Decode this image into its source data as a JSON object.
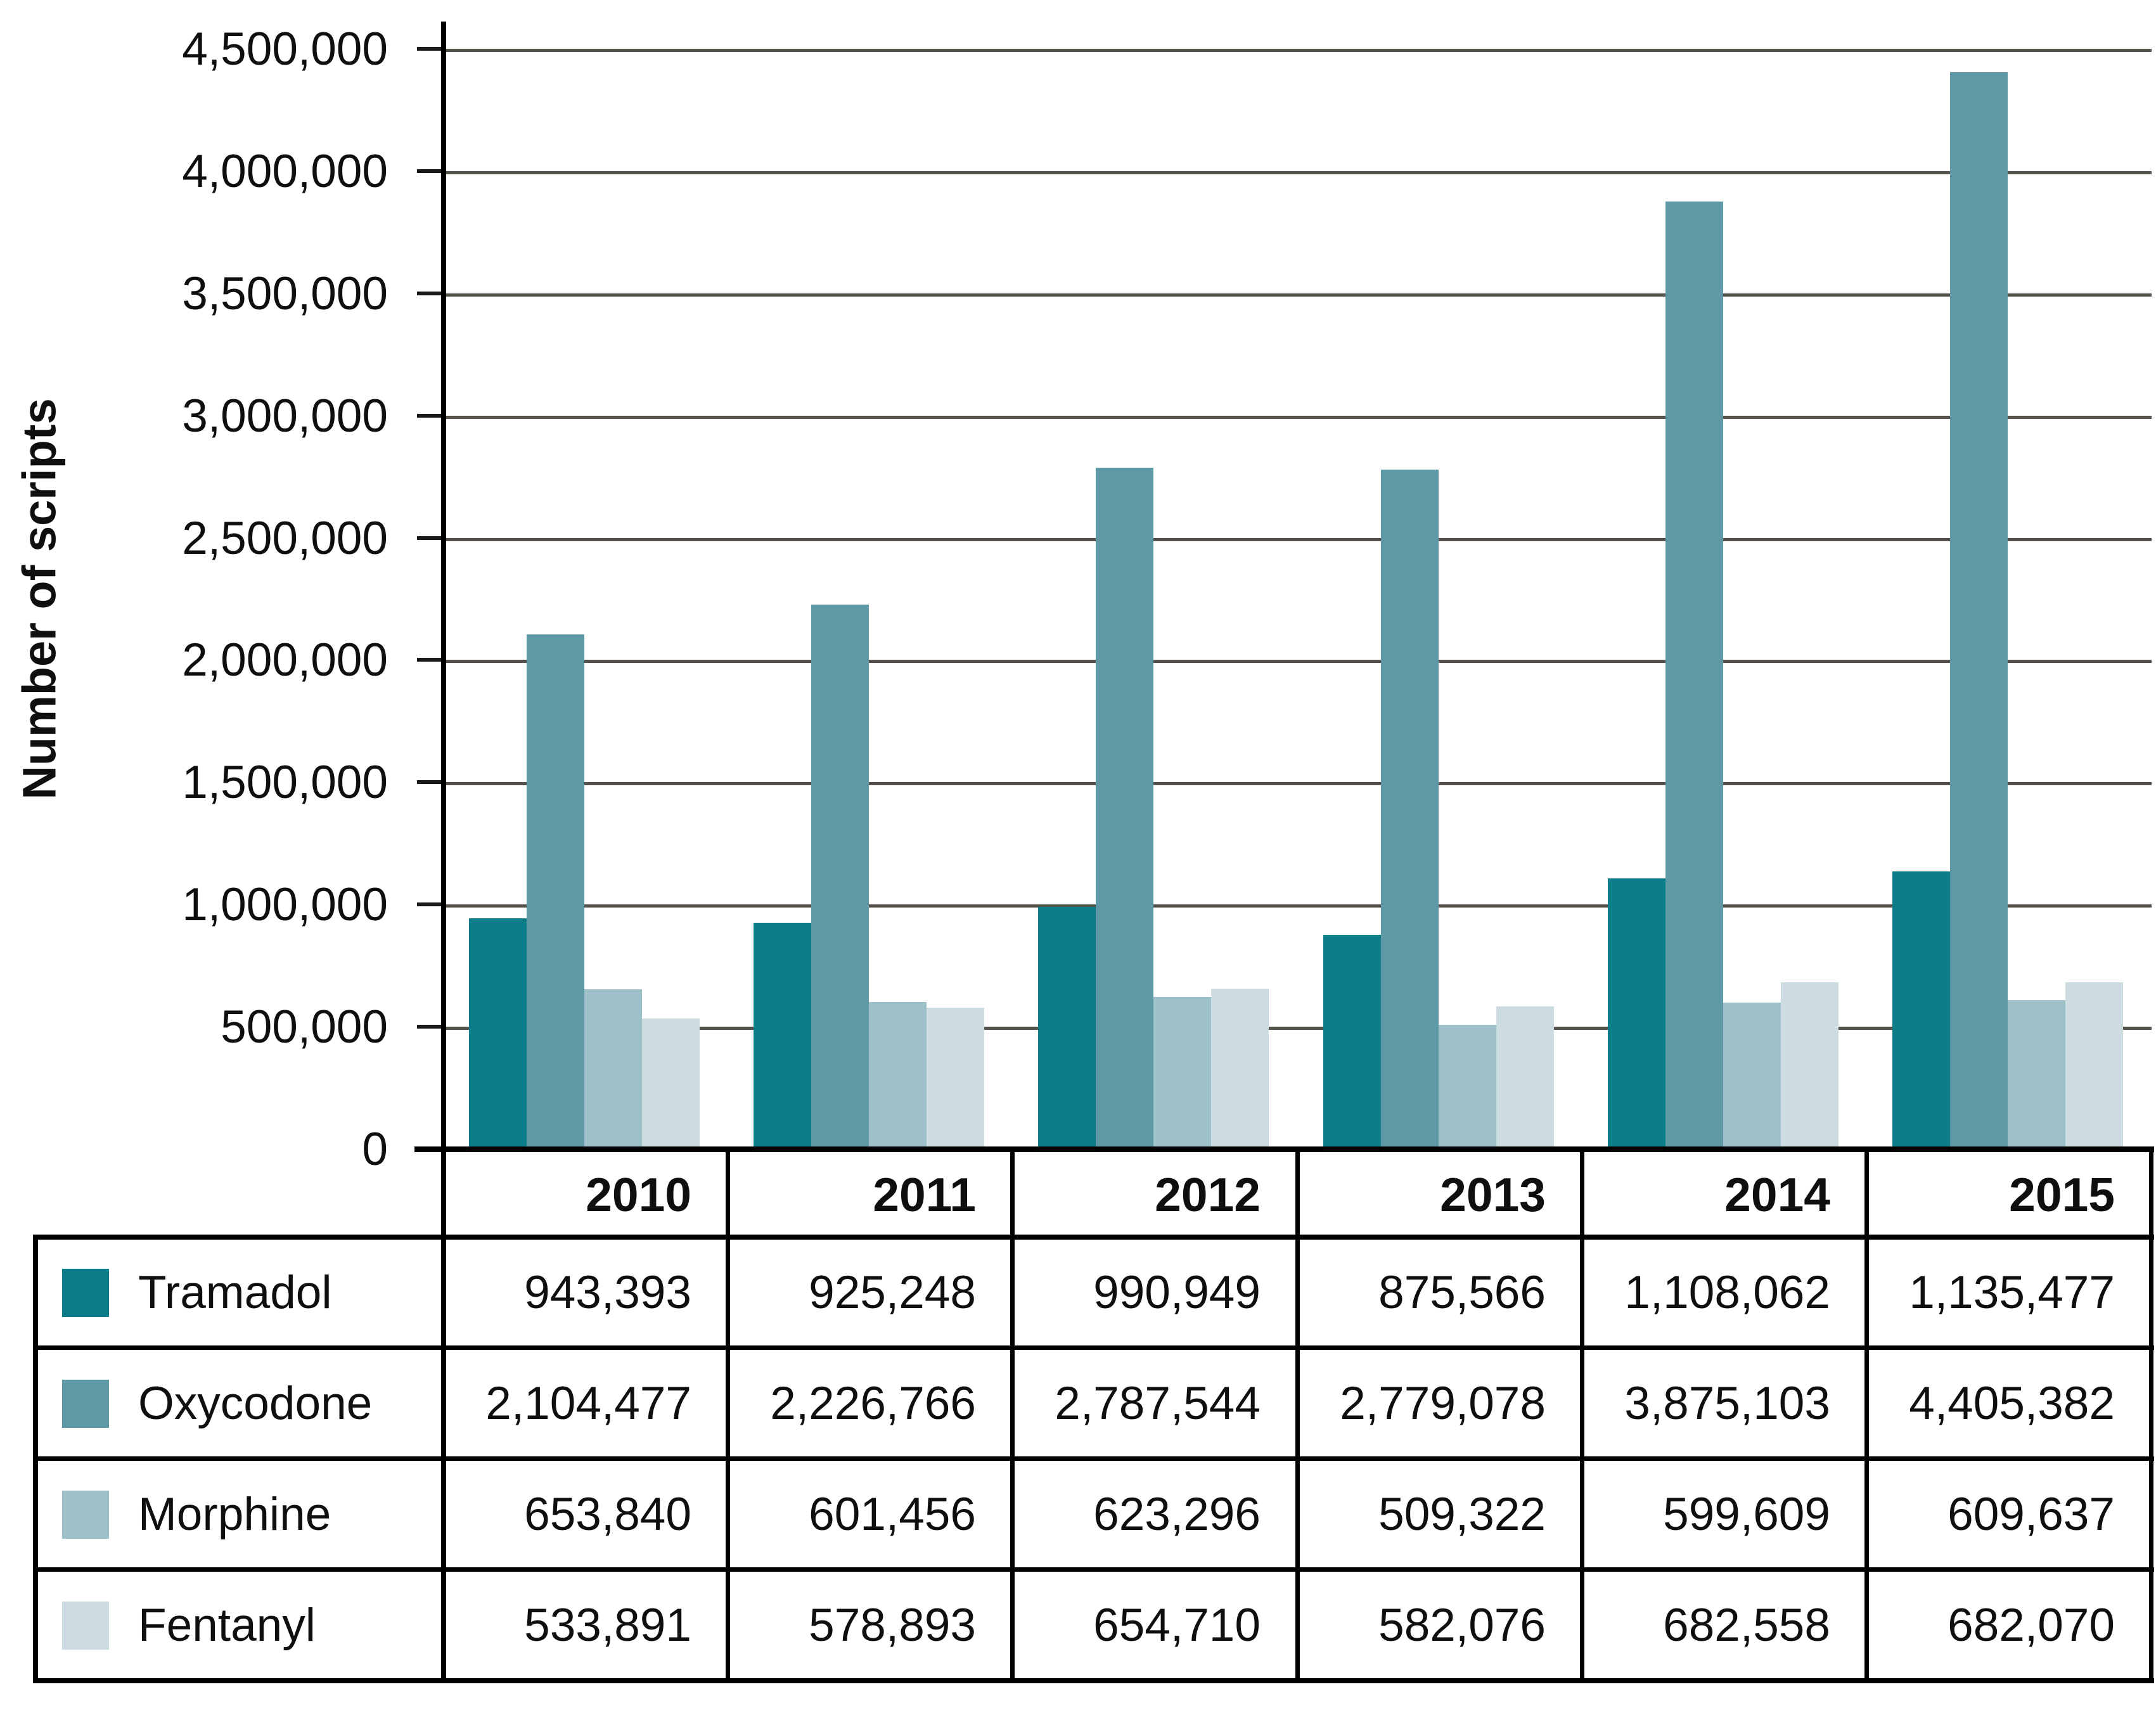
{
  "chart_data": {
    "type": "bar",
    "title": "",
    "xlabel": "",
    "ylabel": "Number of scripts",
    "ylim": [
      0,
      4500000
    ],
    "ytick_interval": 500000,
    "ytick_labels_top_down": [
      "4,500,000",
      "4,000,000",
      "3,500,000",
      "3,000,000",
      "2,500,000",
      "2,000,000",
      "1,500,000",
      "1,000,000",
      "500,000",
      "0"
    ],
    "categories": [
      "2010",
      "2011",
      "2012",
      "2013",
      "2014",
      "2015"
    ],
    "series": [
      {
        "name": "Tramadol",
        "color": "#0b7e8a",
        "values": [
          943393,
          925248,
          990949,
          875566,
          1108062,
          1135477
        ],
        "formatted": [
          "943,393",
          "925,248",
          "990,949",
          "875,566",
          "1,108,062",
          "1,135,477"
        ]
      },
      {
        "name": "Oxycodone",
        "color": "#5f99a5",
        "values": [
          2104477,
          2226766,
          2787544,
          2779078,
          3875103,
          4405382
        ],
        "formatted": [
          "2,104,477",
          "2,226,766",
          "2,787,544",
          "2,779,078",
          "3,875,103",
          "4,405,382"
        ]
      },
      {
        "name": "Morphine",
        "color": "#9ec0c8",
        "values": [
          653840,
          601456,
          623296,
          509322,
          599609,
          609637
        ],
        "formatted": [
          "653,840",
          "601,456",
          "623,296",
          "509,322",
          "599,609",
          "609,637"
        ]
      },
      {
        "name": "Fentanyl",
        "color": "#ccdce1",
        "values": [
          533891,
          578893,
          654710,
          582076,
          682558,
          682070
        ],
        "formatted": [
          "533,891",
          "578,893",
          "654,710",
          "582,076",
          "682,558",
          "682,070"
        ]
      }
    ],
    "grid": true,
    "gridline_color": "#55514b",
    "axis_color": "#000000",
    "text_color": "#0f0f0f",
    "legend_position": "table-below-left-column"
  }
}
